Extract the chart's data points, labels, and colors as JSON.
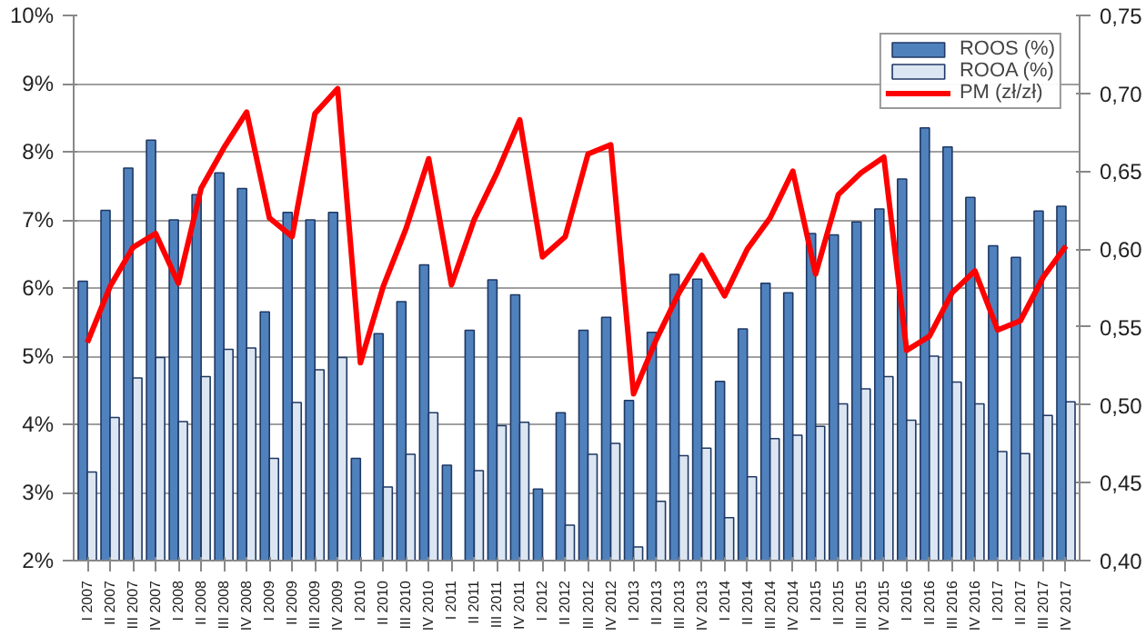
{
  "chart_data": {
    "type": "bar",
    "categories": [
      "I 2007",
      "II 2007",
      "III 2007",
      "IV 2007",
      "I 2008",
      "II 2008",
      "III 2008",
      "IV 2008",
      "I 2009",
      "II 2009",
      "III 2009",
      "IV 2009",
      "I 2010",
      "II 2010",
      "III 2010",
      "IV 2010",
      "I 2011",
      "II 2011",
      "III 2011",
      "IV 2011",
      "I 2012",
      "II 2012",
      "III 2012",
      "IV 2012",
      "I 2013",
      "II 2013",
      "III 2013",
      "IV 2013",
      "I 2014",
      "II 2014",
      "III 2014",
      "IV 2014",
      "I 2015",
      "II 2015",
      "III 2015",
      "IV 2015",
      "I 2016",
      "II 2016",
      "III 2016",
      "IV 2016",
      "I 2017",
      "II 2017",
      "III 2017",
      "IV 2017"
    ],
    "series": [
      {
        "name": "ROOS (%)",
        "color": "#4f81bd",
        "values": [
          6.1,
          7.14,
          7.76,
          8.17,
          7.0,
          7.37,
          7.69,
          7.46,
          5.65,
          7.11,
          7.0,
          7.11,
          3.5,
          5.33,
          5.8,
          6.34,
          3.4,
          5.38,
          6.12,
          5.9,
          3.05,
          4.17,
          5.38,
          5.57,
          4.35,
          5.35,
          6.2,
          6.13,
          4.63,
          5.4,
          6.07,
          5.93,
          6.8,
          6.78,
          6.97,
          7.16,
          7.6,
          8.35,
          8.07,
          7.33,
          6.62,
          6.45,
          7.13,
          7.2
        ]
      },
      {
        "name": "ROOA (%)",
        "color": "#dce6f2",
        "values": [
          3.3,
          4.1,
          4.68,
          4.98,
          4.04,
          4.7,
          5.1,
          5.12,
          3.5,
          4.32,
          4.8,
          4.98,
          null,
          3.08,
          3.56,
          4.17,
          null,
          3.32,
          3.98,
          4.03,
          null,
          2.52,
          3.56,
          3.72,
          2.2,
          2.87,
          3.54,
          3.65,
          2.63,
          3.23,
          3.79,
          3.84,
          3.97,
          4.3,
          4.52,
          4.7,
          4.06,
          5.0,
          4.62,
          4.3,
          3.6,
          3.57,
          4.13,
          4.33
        ]
      },
      {
        "name": "PM (zł/zł)",
        "type": "line",
        "axis": "y2",
        "color": "#ff0000",
        "values": [
          0.54,
          0.576,
          0.601,
          0.61,
          0.578,
          0.639,
          0.665,
          0.688,
          0.62,
          0.608,
          0.687,
          0.703,
          0.527,
          0.576,
          0.613,
          0.658,
          0.577,
          0.619,
          0.649,
          0.683,
          0.595,
          0.608,
          0.661,
          0.667,
          0.507,
          0.542,
          0.572,
          0.596,
          0.57,
          0.6,
          0.62,
          0.65,
          0.584,
          0.635,
          0.649,
          0.659,
          0.535,
          0.544,
          0.572,
          0.586,
          0.548,
          0.554,
          0.582,
          0.602
        ]
      }
    ],
    "ylim": [
      2,
      10
    ],
    "yticks": [
      {
        "value": 2,
        "label": "2%"
      },
      {
        "value": 3,
        "label": "3%"
      },
      {
        "value": 4,
        "label": "4%"
      },
      {
        "value": 5,
        "label": "5%"
      },
      {
        "value": 6,
        "label": "6%"
      },
      {
        "value": 7,
        "label": "7%"
      },
      {
        "value": 8,
        "label": "8%"
      },
      {
        "value": 9,
        "label": "9%"
      },
      {
        "value": 10,
        "label": "10%"
      }
    ],
    "y2lim": [
      0.4,
      0.75
    ],
    "y2ticks": [
      {
        "value": 0.4,
        "label": "0,40"
      },
      {
        "value": 0.45,
        "label": "0,45"
      },
      {
        "value": 0.5,
        "label": "0,50"
      },
      {
        "value": 0.55,
        "label": "0,55"
      },
      {
        "value": 0.6,
        "label": "0,60"
      },
      {
        "value": 0.65,
        "label": "0,65"
      },
      {
        "value": 0.7,
        "label": "0,70"
      },
      {
        "value": 0.75,
        "label": "0,75"
      }
    ],
    "grid": "y",
    "legend": "top right",
    "marker": "none",
    "line_style": "solid"
  }
}
